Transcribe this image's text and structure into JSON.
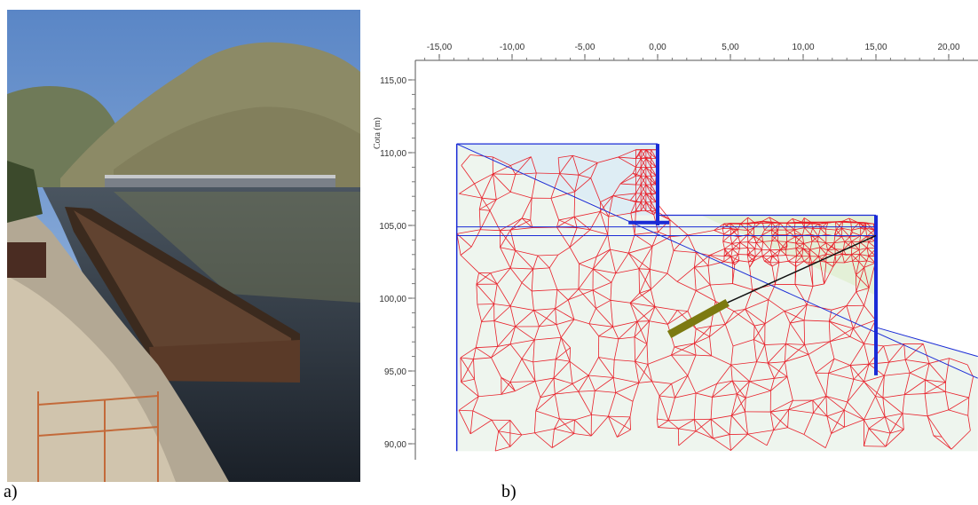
{
  "captions": {
    "a": "a)",
    "b": "b)"
  },
  "photo": {
    "description_icon": "construction-site-photo-icon"
  },
  "model": {
    "y_axis_label": "Cota (m)",
    "x_ticks": [
      "-15,00",
      "-10,00",
      "-5,00",
      "0,00",
      "5,00",
      "10,00",
      "15,00",
      "20,00"
    ],
    "y_ticks": [
      "115,00",
      "110,00",
      "105,00",
      "100,00",
      "95,00",
      "90,00"
    ],
    "colors": {
      "mesh": "#e8202a",
      "structure": "#1a2bd6",
      "soil_fill": "#eef5ee",
      "upper_fill": "#dcecf4",
      "anchor": "#7c7a10"
    }
  }
}
